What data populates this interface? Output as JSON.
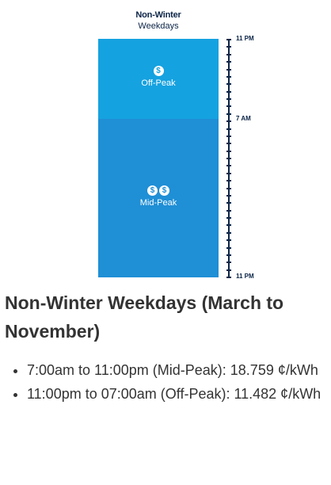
{
  "chart": {
    "title": "Non-Winter",
    "subtitle": "Weekdays",
    "segments": [
      {
        "label": "Off-Peak",
        "icon": "dollar-coin-icon",
        "coins": "$"
      },
      {
        "label": "Mid-Peak",
        "icon": "double-dollar-coin-icon",
        "coins": "$$"
      }
    ],
    "axis_labels": {
      "top": "11 PM",
      "middle": "7 AM",
      "bottom": "11 PM"
    },
    "colors": {
      "off_peak": "#15a2e0",
      "mid_peak": "#1f8fd6",
      "axis": "#0b2447"
    }
  },
  "section": {
    "heading": "Non-Winter Weekdays (March to November)",
    "items": [
      "7:00am to 11:00pm (Mid-Peak): 18.759 ¢/kWh",
      "11:00pm to 07:00am (Off-Peak): 11.482 ¢/kWh"
    ]
  }
}
